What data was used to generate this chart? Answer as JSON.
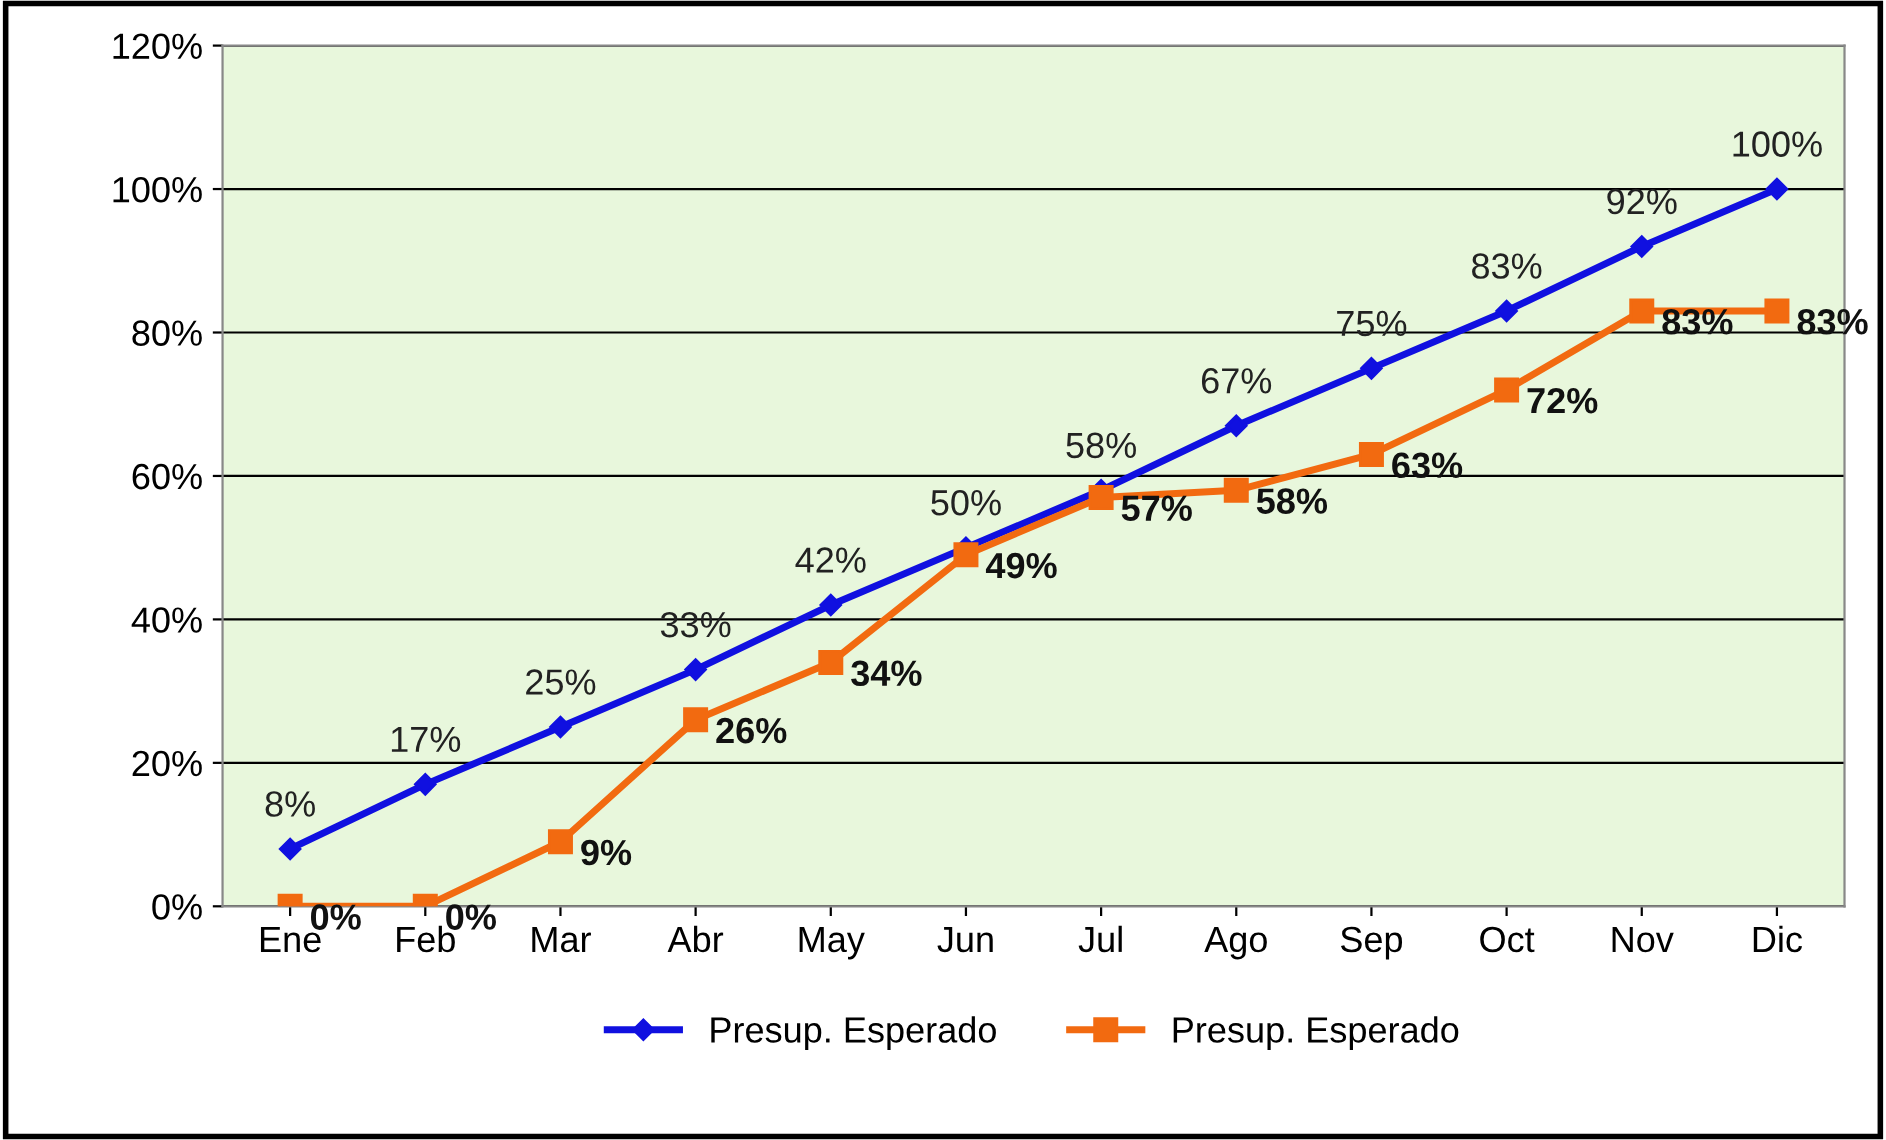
{
  "chart_data": {
    "type": "line",
    "categories": [
      "Ene",
      "Feb",
      "Mar",
      "Abr",
      "May",
      "Jun",
      "Jul",
      "Ago",
      "Sep",
      "Oct",
      "Nov",
      "Dic"
    ],
    "series": [
      {
        "name": "Presup. Esperado",
        "color": "#1010e0",
        "marker": "diamond",
        "values": [
          8,
          17,
          25,
          33,
          42,
          50,
          58,
          67,
          75,
          83,
          92,
          100
        ],
        "value_labels": [
          "8%",
          "17%",
          "25%",
          "33%",
          "42%",
          "50%",
          "58%",
          "67%",
          "75%",
          "83%",
          "92%",
          "100%"
        ]
      },
      {
        "name": "Presup. Esperado",
        "color": "#f26a10",
        "marker": "square",
        "values": [
          0,
          0,
          9,
          26,
          34,
          49,
          57,
          58,
          63,
          72,
          83,
          83
        ],
        "value_labels": [
          "0%",
          "0%",
          "9%",
          "26%",
          "34%",
          "49%",
          "57%",
          "58%",
          "63%",
          "72%",
          "83%",
          "83%"
        ]
      }
    ],
    "ylim": [
      0,
      120
    ],
    "yticks": [
      {
        "value": 0,
        "label": "0%"
      },
      {
        "value": 20,
        "label": "20%"
      },
      {
        "value": 40,
        "label": "40%"
      },
      {
        "value": 60,
        "label": "60%"
      },
      {
        "value": 80,
        "label": "80%"
      },
      {
        "value": 100,
        "label": "100%"
      },
      {
        "value": 120,
        "label": "120%"
      }
    ],
    "grid": "y",
    "legend": "bottom",
    "line_style": "solid"
  }
}
